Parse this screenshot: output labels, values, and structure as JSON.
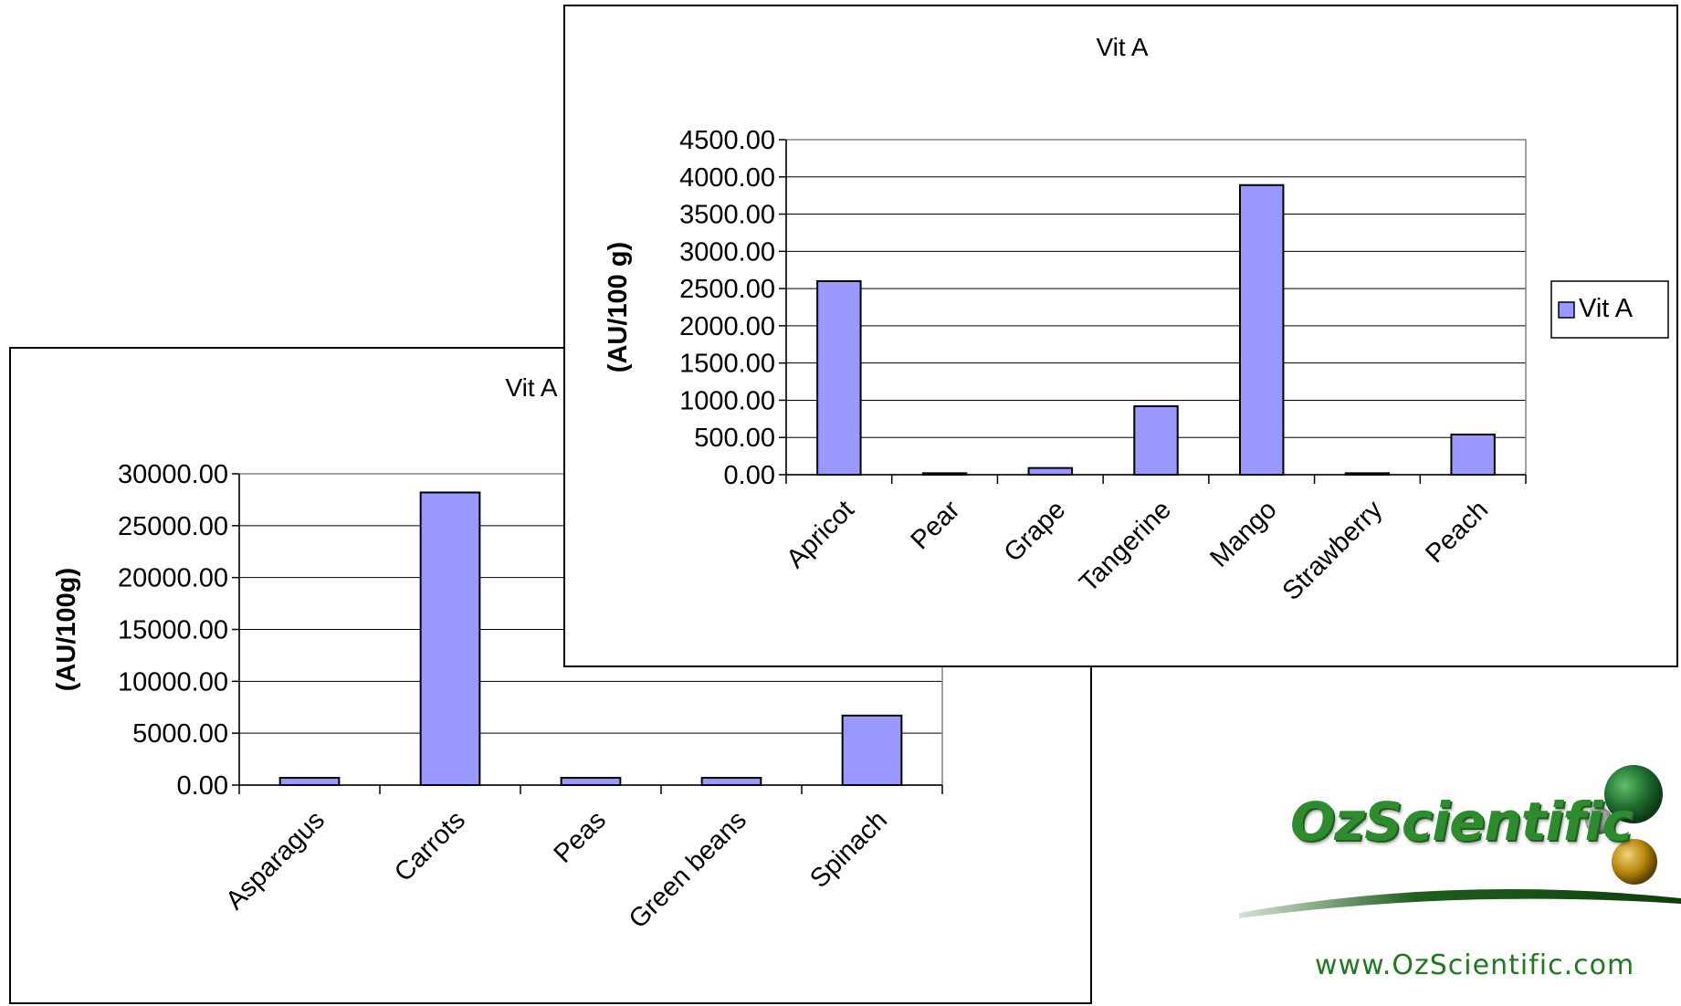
{
  "chart_data": [
    {
      "type": "bar",
      "title": "Vit A",
      "ylabel": "(AU/100g)",
      "xlabel": "",
      "categories": [
        "Asparagus",
        "Carrots",
        "Peas",
        "Green beans",
        "Spinach"
      ],
      "values": [
        700,
        28200,
        700,
        700,
        6700
      ],
      "ylim": [
        0,
        30000
      ],
      "yticks": [
        "0.00",
        "5000.00",
        "10000.00",
        "15000.00",
        "20000.00",
        "25000.00",
        "30000.00"
      ],
      "grid": true,
      "bar_color": "#9999ff",
      "legend": false
    },
    {
      "type": "bar",
      "title": "Vit A",
      "ylabel": "(AU/100 g)",
      "xlabel": "",
      "categories": [
        "Apricot",
        "Pear",
        "Grape",
        "Tangerine",
        "Mango",
        "Strawberry",
        "Peach"
      ],
      "values": [
        2600,
        20,
        90,
        920,
        3890,
        20,
        540
      ],
      "ylim": [
        0,
        4500
      ],
      "yticks": [
        "0.00",
        "500.00",
        "1000.00",
        "1500.00",
        "2000.00",
        "2500.00",
        "3000.00",
        "3500.00",
        "4000.00",
        "4500.00"
      ],
      "grid": true,
      "bar_color": "#9999ff",
      "legend": true,
      "legend_entry": "Vit A",
      "legend_position": "right"
    }
  ],
  "logo": {
    "text": "OzScientific",
    "colors": {
      "text": "#2e8b2e",
      "sphere_large": "#1f6b2f",
      "sphere_gold": "#b8860b",
      "sphere_grey": "#a0a0a0"
    }
  },
  "website": "www.OzScientific.com"
}
